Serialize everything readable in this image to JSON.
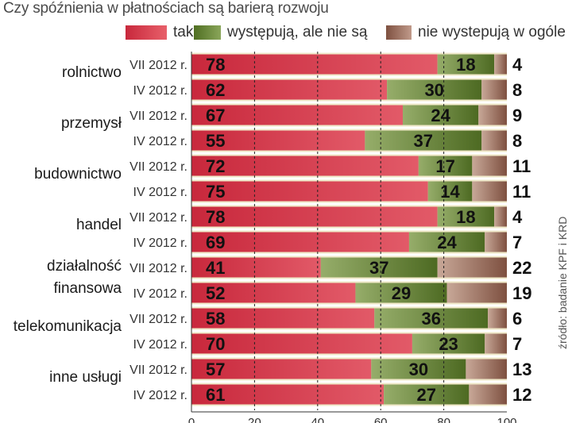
{
  "chart_data": {
    "type": "bar",
    "orientation": "horizontal",
    "stacked": true,
    "title": "Czy spóźnienia w płatnościach są barierą rozwoju",
    "source": "źródło: badanie KPF i KRD",
    "xlim": [
      0,
      100
    ],
    "xticks": [
      0,
      20,
      40,
      60,
      80,
      100
    ],
    "legend": [
      {
        "name": "tak",
        "color": "#d8384a"
      },
      {
        "name": "występują, ale nie są",
        "color": "#6b8a3a"
      },
      {
        "name": "nie wystepują w ogóle",
        "color": "#9a6a58"
      }
    ],
    "groups": [
      {
        "label": "rolnictwo",
        "label_lines": [
          "rolnictwo"
        ],
        "rows": [
          {
            "period": "VII 2012 r.",
            "values": [
              78,
              18,
              4
            ]
          },
          {
            "period": "IV 2012 r.",
            "values": [
              62,
              30,
              8
            ]
          }
        ]
      },
      {
        "label": "przemysł",
        "label_lines": [
          "przemysł"
        ],
        "rows": [
          {
            "period": "VII 2012 r.",
            "values": [
              67,
              24,
              9
            ]
          },
          {
            "period": "IV 2012 r.",
            "values": [
              55,
              37,
              8
            ]
          }
        ]
      },
      {
        "label": "budownictwo",
        "label_lines": [
          "budownictwo"
        ],
        "rows": [
          {
            "period": "VII 2012 r.",
            "values": [
              72,
              17,
              11
            ]
          },
          {
            "period": "IV 2012 r.",
            "values": [
              75,
              14,
              11
            ]
          }
        ]
      },
      {
        "label": "handel",
        "label_lines": [
          "handel"
        ],
        "rows": [
          {
            "period": "VII 2012 r.",
            "values": [
              78,
              18,
              4
            ]
          },
          {
            "period": "IV 2012 r.",
            "values": [
              69,
              24,
              7
            ]
          }
        ]
      },
      {
        "label": "działalność finansowa",
        "label_lines": [
          "działalność",
          "finansowa"
        ],
        "rows": [
          {
            "period": "VII 2012 r.",
            "values": [
              41,
              37,
              22
            ]
          },
          {
            "period": "IV 2012 r.",
            "values": [
              52,
              29,
              19
            ]
          }
        ]
      },
      {
        "label": "telekomunikacja",
        "label_lines": [
          "telekomunikacja"
        ],
        "rows": [
          {
            "period": "VII 2012 r.",
            "values": [
              58,
              36,
              6
            ]
          },
          {
            "period": "IV 2012 r.",
            "values": [
              70,
              23,
              7
            ]
          }
        ]
      },
      {
        "label": "inne usługi",
        "label_lines": [
          "inne usługi"
        ],
        "rows": [
          {
            "period": "VII 2012 r.",
            "values": [
              57,
              30,
              13
            ]
          },
          {
            "period": "IV 2012 r.",
            "values": [
              61,
              27,
              12
            ]
          }
        ]
      }
    ]
  }
}
